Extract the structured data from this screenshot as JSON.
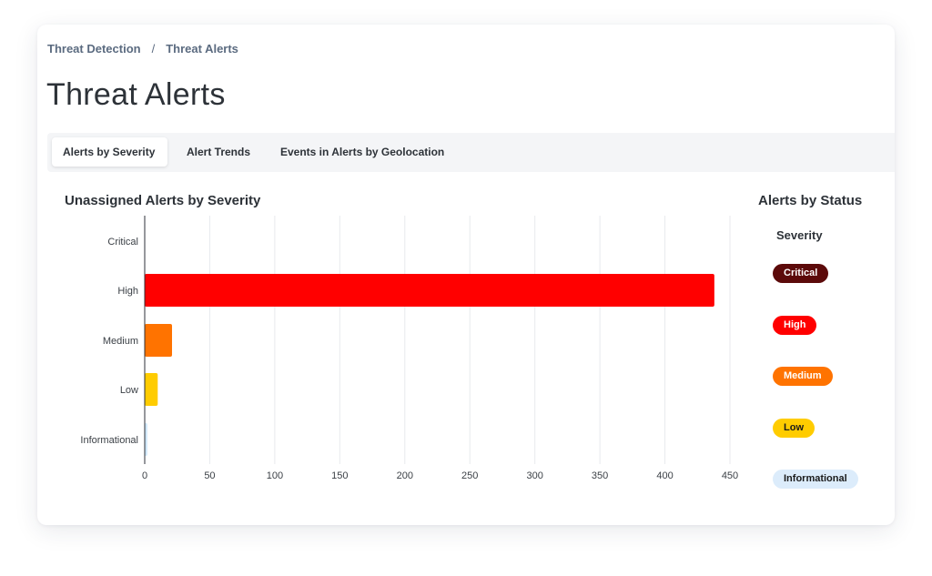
{
  "breadcrumb": {
    "items": [
      "Threat Detection",
      "Threat Alerts"
    ],
    "separator": "/"
  },
  "page": {
    "title": "Threat Alerts"
  },
  "tabs": [
    {
      "label": "Alerts by Severity",
      "active": true
    },
    {
      "label": "Alert Trends",
      "active": false
    },
    {
      "label": "Events in Alerts by Geolocation",
      "active": false
    }
  ],
  "chart_data": {
    "type": "bar",
    "orientation": "horizontal",
    "title": "Unassigned Alerts by Severity",
    "categories": [
      "Critical",
      "High",
      "Medium",
      "Low",
      "Informational"
    ],
    "values": [
      0,
      438,
      21,
      10,
      2
    ],
    "colors": [
      "#5c0a0a",
      "#ff0000",
      "#ff7300",
      "#ffcc00",
      "#cfe8fb"
    ],
    "xticks": [
      0,
      50,
      100,
      150,
      200,
      250,
      300,
      350,
      400,
      450
    ],
    "xlim": [
      0,
      450
    ],
    "grid": true
  },
  "status_panel": {
    "title": "Alerts by Status",
    "header": "Severity",
    "pills": [
      {
        "label": "Critical",
        "bg": "#5c0a0a",
        "fg": "#ffffff"
      },
      {
        "label": "High",
        "bg": "#ff0000",
        "fg": "#ffffff"
      },
      {
        "label": "Medium",
        "bg": "#ff7300",
        "fg": "#ffffff"
      },
      {
        "label": "Low",
        "bg": "#ffcc00",
        "fg": "#1a1a1a"
      },
      {
        "label": "Informational",
        "bg": "#dcecfb",
        "fg": "#1a1a1a"
      }
    ]
  }
}
